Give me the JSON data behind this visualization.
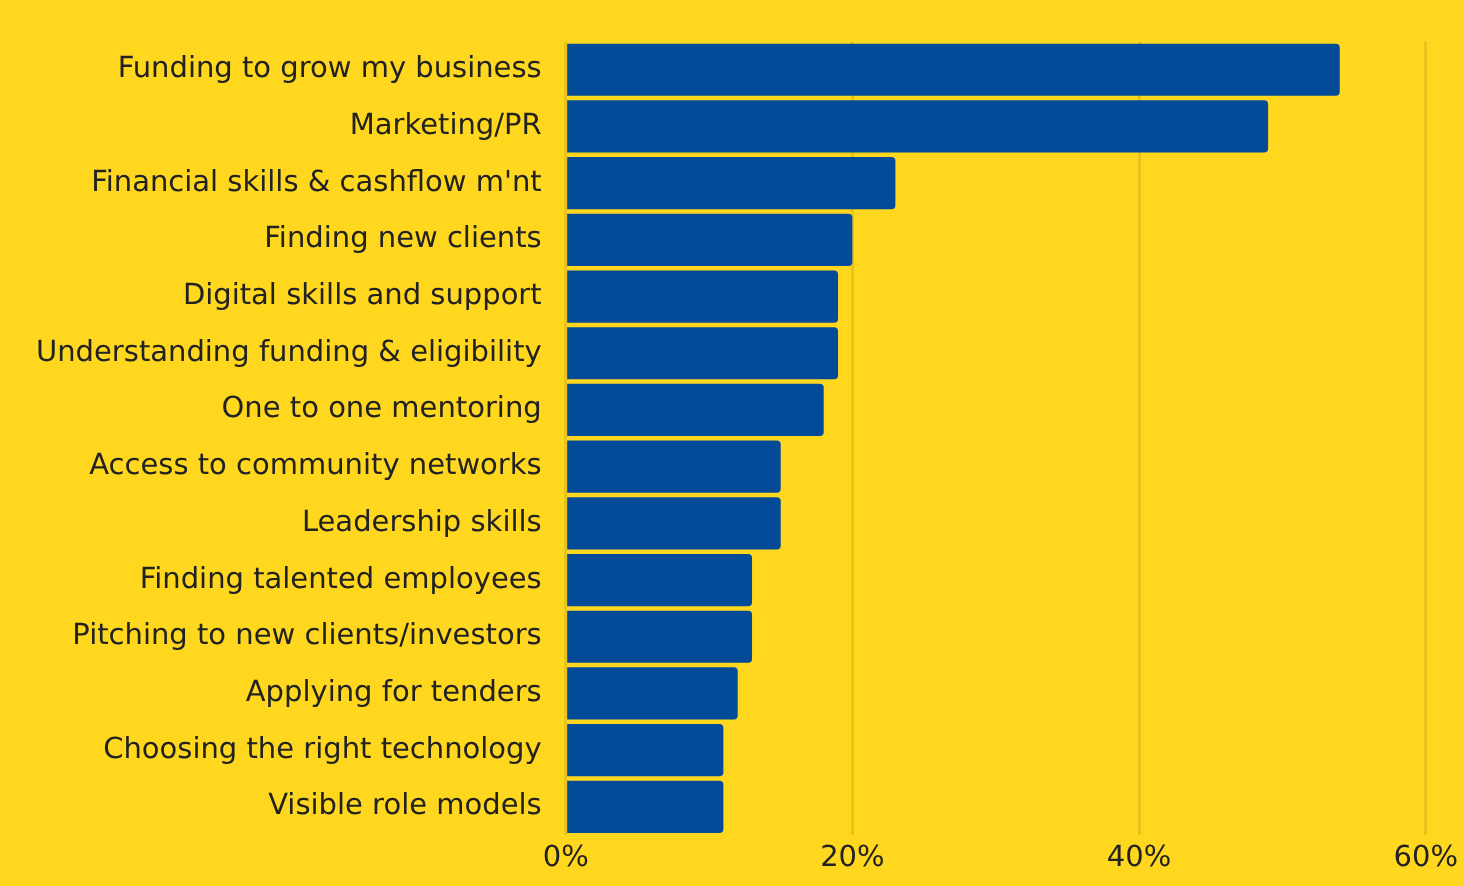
{
  "chart_data": {
    "type": "bar",
    "orientation": "horizontal",
    "categories": [
      "Funding to grow my business",
      "Marketing/PR",
      "Financial skills & cashflow m'nt",
      "Finding new clients",
      "Digital skills and support",
      "Understanding funding & eligibility",
      "One to one mentoring",
      "Access to community networks",
      "Leadership skills",
      "Finding talented employees",
      "Pitching to new clients/investors",
      "Applying for tenders",
      "Choosing the right technology",
      "Visible role models"
    ],
    "values": [
      54,
      49,
      23,
      20,
      19,
      19,
      18,
      15,
      15,
      13,
      13,
      12,
      11,
      11
    ],
    "color": "#034b98",
    "xlim": [
      0,
      60
    ],
    "xticks": [
      {
        "value": 0,
        "label": "0%"
      },
      {
        "value": 20,
        "label": "20%"
      },
      {
        "value": 40,
        "label": "40%"
      },
      {
        "value": 60,
        "label": "60%"
      }
    ],
    "grid": "x",
    "legend": false
  }
}
